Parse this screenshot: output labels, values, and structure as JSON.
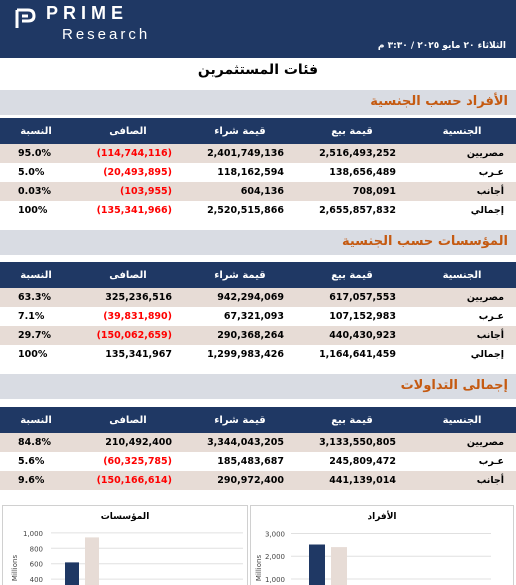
{
  "header": {
    "brand": "PRIME",
    "brand_sub": "Research",
    "date": "الثلاثاء ٢٠ مايو ٢٠٢٥ / ٣:٣٠ م"
  },
  "page_title": "فئات المستثمرين",
  "columns": {
    "nationality": "الجنسية",
    "sell": "قيمة بيع",
    "buy": "قيمة شراء",
    "net": "الصافى",
    "ratio": "النسبة"
  },
  "sections": [
    {
      "title": "الأفراد حسب الجنسية",
      "rows": [
        {
          "label": "مصريين",
          "sell": "2,516,493,252",
          "buy": "2,401,749,136",
          "net": "(114,744,116)",
          "ratio": "95.0%",
          "negative": true
        },
        {
          "label": "عـرب",
          "sell": "138,656,489",
          "buy": "118,162,594",
          "net": "(20,493,895)",
          "ratio": "5.0%",
          "negative": true
        },
        {
          "label": "أجانب",
          "sell": "708,091",
          "buy": "604,136",
          "net": "(103,955)",
          "ratio": "0.03%",
          "negative": true
        },
        {
          "label": "إجمالي",
          "sell": "2,655,857,832",
          "buy": "2,520,515,866",
          "net": "(135,341,966)",
          "ratio": "100%",
          "negative": true
        }
      ]
    },
    {
      "title": "المؤسسات حسب الجنسية",
      "rows": [
        {
          "label": "مصريين",
          "sell": "617,057,553",
          "buy": "942,294,069",
          "net": "325,236,516",
          "ratio": "63.3%",
          "negative": false
        },
        {
          "label": "عـرب",
          "sell": "107,152,983",
          "buy": "67,321,093",
          "net": "(39,831,890)",
          "ratio": "7.1%",
          "negative": true
        },
        {
          "label": "أجانب",
          "sell": "440,430,923",
          "buy": "290,368,264",
          "net": "(150,062,659)",
          "ratio": "29.7%",
          "negative": true
        },
        {
          "label": "إجمالي",
          "sell": "1,164,641,459",
          "buy": "1,299,983,426",
          "net": "135,341,967",
          "ratio": "100%",
          "negative": false
        }
      ]
    },
    {
      "title": "إجمالى التداولات",
      "rows": [
        {
          "label": "مصريين",
          "sell": "3,133,550,805",
          "buy": "3,344,043,205",
          "net": "210,492,400",
          "ratio": "84.8%",
          "negative": false
        },
        {
          "label": "عـرب",
          "sell": "245,809,472",
          "buy": "185,483,687",
          "net": "(60,325,785)",
          "ratio": "5.6%",
          "negative": true
        },
        {
          "label": "أجانب",
          "sell": "441,139,014",
          "buy": "290,972,400",
          "net": "(150,166,614)",
          "ratio": "9.6%",
          "negative": true
        }
      ]
    }
  ],
  "chart_data": [
    {
      "type": "bar",
      "title": "المؤسسات",
      "ylabel": "Millions",
      "tick_labels": [
        "1,000",
        "800",
        "600",
        "400"
      ],
      "ylim": [
        310,
        1090
      ],
      "series": [
        {
          "values": [
            617
          ]
        },
        {
          "values": [
            942
          ]
        }
      ],
      "colors": [
        "#1f3864",
        "#e7dcd6"
      ]
    },
    {
      "type": "bar",
      "title": "الأفراد",
      "ylabel": "Millions",
      "tick_labels": [
        "3,000",
        "2,000",
        "1,000"
      ],
      "ylim": [
        690,
        3330
      ],
      "series": [
        {
          "values": [
            2516
          ]
        },
        {
          "values": [
            2402
          ]
        }
      ],
      "colors": [
        "#1f3864",
        "#e7dcd6"
      ]
    }
  ]
}
